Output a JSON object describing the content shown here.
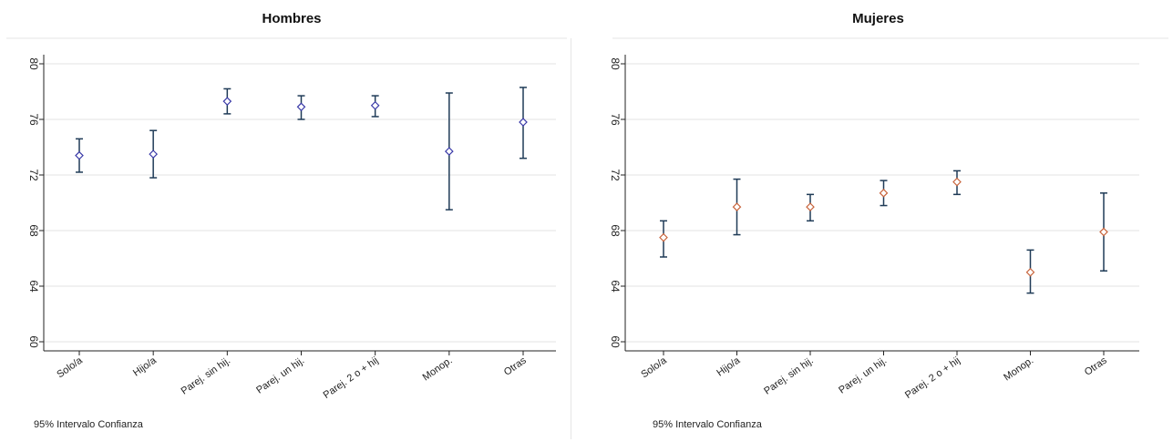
{
  "chart_data": [
    {
      "type": "scatter",
      "title": "Hombres",
      "categories": [
        "Solo/a",
        "Hijo/a",
        "Parej. sin hij.",
        "Parej. un hij.",
        "Parej. 2 o + hij",
        "Monop.",
        "Otras"
      ],
      "series": [
        {
          "values": [
            73.4,
            73.5,
            77.3,
            76.9,
            77.0,
            73.7,
            75.8
          ],
          "lower": [
            72.2,
            71.8,
            76.4,
            76.0,
            76.2,
            69.5,
            73.2
          ],
          "upper": [
            74.6,
            75.2,
            78.2,
            77.7,
            77.7,
            77.9,
            78.3
          ],
          "color": "#3a3aa8"
        }
      ],
      "ylim": [
        60,
        80
      ],
      "yticks": [
        "60",
        "64",
        "68",
        "72",
        "76",
        "80"
      ],
      "grid": true,
      "note": "95% Intervalo Confianza"
    },
    {
      "type": "scatter",
      "title": "Mujeres",
      "categories": [
        "Solo/a",
        "Hijo/a",
        "Parej. sin hij.",
        "Parej. un hij.",
        "Parej. 2 o + hij",
        "Monop.",
        "Otras"
      ],
      "series": [
        {
          "values": [
            67.5,
            69.7,
            69.7,
            70.7,
            71.5,
            65.0,
            67.9
          ],
          "lower": [
            66.1,
            67.7,
            68.7,
            69.8,
            70.6,
            63.5,
            65.1
          ],
          "upper": [
            68.7,
            71.7,
            70.6,
            71.6,
            72.3,
            66.6,
            70.7
          ],
          "color": "#c8643c"
        }
      ],
      "ylim": [
        60,
        80
      ],
      "yticks": [
        "60",
        "64",
        "68",
        "72",
        "76",
        "80"
      ],
      "grid": true,
      "note": "95% Intervalo Confianza"
    }
  ],
  "style": {
    "errorbar_color": "#1f3b57",
    "grid_color": "#e3e3e3",
    "axis_color": "#222222"
  }
}
